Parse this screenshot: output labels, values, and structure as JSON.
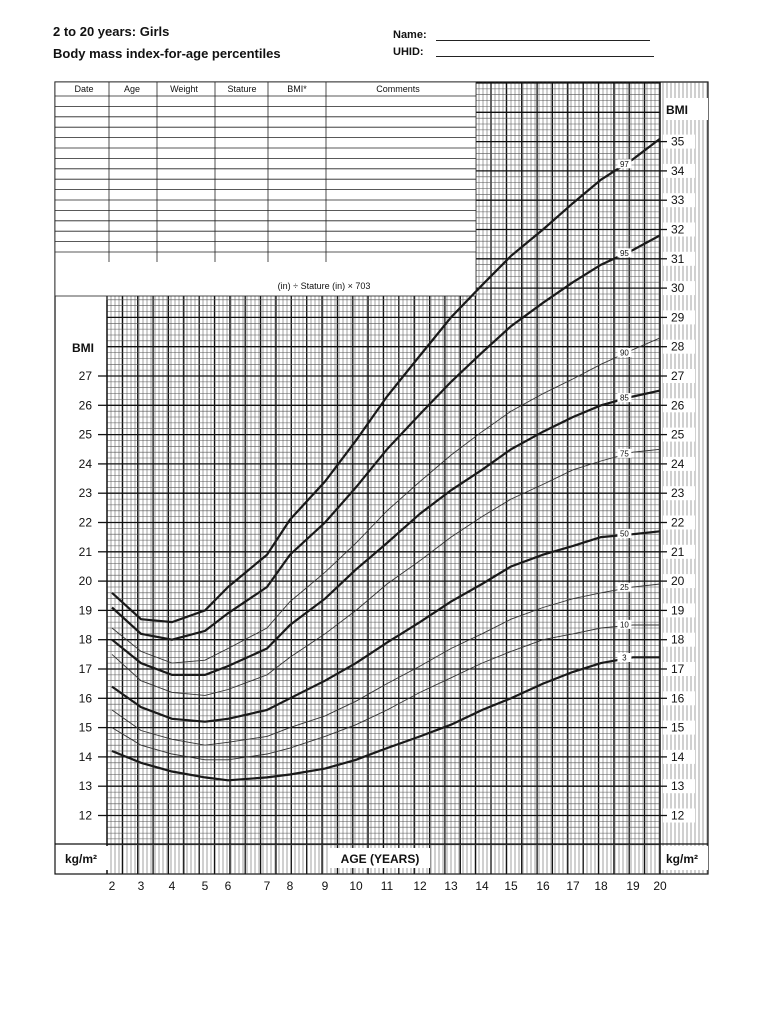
{
  "header": {
    "title_line1": "2 to 20 years: Girls",
    "title_line2": "Body mass index-for-age percentiles",
    "name_label": "Name:",
    "uhid_label": "UHID:"
  },
  "record_table": {
    "columns": [
      "Date",
      "Age",
      "Weight",
      "Stature",
      "BMI*",
      "Comments"
    ],
    "formula_note": "(in) ÷ Stature (in) × 703"
  },
  "chart_data": {
    "type": "line",
    "title": "Body mass index-for-age percentiles",
    "xlabel": "AGE (YEARS)",
    "ylabel": "BMI",
    "unit_label": "kg/m²",
    "xlim": [
      2,
      20
    ],
    "ylim": [
      11,
      36
    ],
    "x_ticks": [
      2,
      3,
      4,
      5,
      6,
      7,
      8,
      9,
      10,
      11,
      12,
      13,
      14,
      15,
      16,
      17,
      18,
      19,
      20
    ],
    "y_ticks_right": [
      12,
      13,
      14,
      15,
      16,
      17,
      18,
      19,
      20,
      21,
      22,
      23,
      24,
      25,
      26,
      27,
      28,
      29,
      30,
      31,
      32,
      33,
      34,
      35
    ],
    "y_ticks_left": [
      12,
      13,
      14,
      15,
      16,
      17,
      18,
      19,
      20,
      21,
      22,
      23,
      24,
      25,
      26,
      27
    ],
    "grid": true,
    "series": [
      {
        "name": "97",
        "weight": "heavy",
        "x": [
          2,
          3,
          4,
          5,
          6,
          7,
          8,
          9,
          10,
          11,
          12,
          13,
          14,
          15,
          16,
          17,
          18,
          19,
          20
        ],
        "y": [
          19.6,
          18.7,
          18.6,
          19.0,
          19.8,
          20.9,
          22.1,
          23.4,
          24.8,
          26.3,
          27.7,
          29.0,
          30.1,
          31.1,
          32.0,
          32.9,
          33.7,
          34.4,
          35.1
        ]
      },
      {
        "name": "95",
        "weight": "heavy",
        "x": [
          2,
          3,
          4,
          5,
          6,
          7,
          8,
          9,
          10,
          11,
          12,
          13,
          14,
          15,
          16,
          17,
          18,
          19,
          20
        ],
        "y": [
          19.1,
          18.2,
          18.0,
          18.3,
          18.9,
          19.8,
          20.9,
          22.0,
          23.2,
          24.5,
          25.7,
          26.8,
          27.8,
          28.7,
          29.5,
          30.2,
          30.8,
          31.3,
          31.8
        ]
      },
      {
        "name": "90",
        "weight": "thin",
        "x": [
          2,
          3,
          4,
          5,
          6,
          7,
          8,
          9,
          10,
          11,
          12,
          13,
          14,
          15,
          16,
          17,
          18,
          19,
          20
        ],
        "y": [
          18.4,
          17.6,
          17.2,
          17.3,
          17.7,
          18.4,
          19.3,
          20.3,
          21.3,
          22.4,
          23.4,
          24.3,
          25.1,
          25.8,
          26.4,
          26.9,
          27.4,
          27.9,
          28.3
        ]
      },
      {
        "name": "85",
        "weight": "heavy",
        "x": [
          2,
          3,
          4,
          5,
          6,
          7,
          8,
          9,
          10,
          11,
          12,
          13,
          14,
          15,
          16,
          17,
          18,
          19,
          20
        ],
        "y": [
          18.0,
          17.2,
          16.8,
          16.8,
          17.1,
          17.7,
          18.5,
          19.4,
          20.4,
          21.3,
          22.3,
          23.1,
          23.8,
          24.5,
          25.1,
          25.6,
          26.0,
          26.3,
          26.5
        ]
      },
      {
        "name": "75",
        "weight": "thin",
        "x": [
          2,
          3,
          4,
          5,
          6,
          7,
          8,
          9,
          10,
          11,
          12,
          13,
          14,
          15,
          16,
          17,
          18,
          19,
          20
        ],
        "y": [
          17.5,
          16.6,
          16.2,
          16.1,
          16.3,
          16.8,
          17.4,
          18.2,
          19.0,
          19.9,
          20.7,
          21.5,
          22.2,
          22.8,
          23.3,
          23.8,
          24.1,
          24.4,
          24.5
        ]
      },
      {
        "name": "50",
        "weight": "heavy",
        "x": [
          2,
          3,
          4,
          5,
          6,
          7,
          8,
          9,
          10,
          11,
          12,
          13,
          14,
          15,
          16,
          17,
          18,
          19,
          20
        ],
        "y": [
          16.4,
          15.7,
          15.3,
          15.2,
          15.3,
          15.6,
          16.0,
          16.6,
          17.2,
          17.9,
          18.6,
          19.3,
          19.9,
          20.5,
          20.9,
          21.2,
          21.5,
          21.6,
          21.7
        ]
      },
      {
        "name": "25",
        "weight": "thin",
        "x": [
          2,
          3,
          4,
          5,
          6,
          7,
          8,
          9,
          10,
          11,
          12,
          13,
          14,
          15,
          16,
          17,
          18,
          19,
          20
        ],
        "y": [
          15.6,
          14.9,
          14.6,
          14.4,
          14.5,
          14.7,
          15.0,
          15.4,
          15.9,
          16.5,
          17.1,
          17.7,
          18.2,
          18.7,
          19.1,
          19.4,
          19.6,
          19.8,
          19.9
        ]
      },
      {
        "name": "10",
        "weight": "thin",
        "x": [
          2,
          3,
          4,
          5,
          6,
          7,
          8,
          9,
          10,
          11,
          12,
          13,
          14,
          15,
          16,
          17,
          18,
          19,
          20
        ],
        "y": [
          15.0,
          14.4,
          14.1,
          13.9,
          13.9,
          14.1,
          14.3,
          14.7,
          15.1,
          15.6,
          16.2,
          16.7,
          17.2,
          17.6,
          18.0,
          18.2,
          18.4,
          18.5,
          18.5
        ]
      },
      {
        "name": "3",
        "weight": "heavy",
        "x": [
          2,
          3,
          4,
          5,
          6,
          7,
          8,
          9,
          10,
          11,
          12,
          13,
          14,
          15,
          16,
          17,
          18,
          19,
          20
        ],
        "y": [
          14.2,
          13.8,
          13.5,
          13.3,
          13.2,
          13.3,
          13.4,
          13.6,
          13.9,
          14.3,
          14.7,
          15.1,
          15.6,
          16.0,
          16.5,
          16.9,
          17.2,
          17.4,
          17.4
        ]
      }
    ]
  }
}
